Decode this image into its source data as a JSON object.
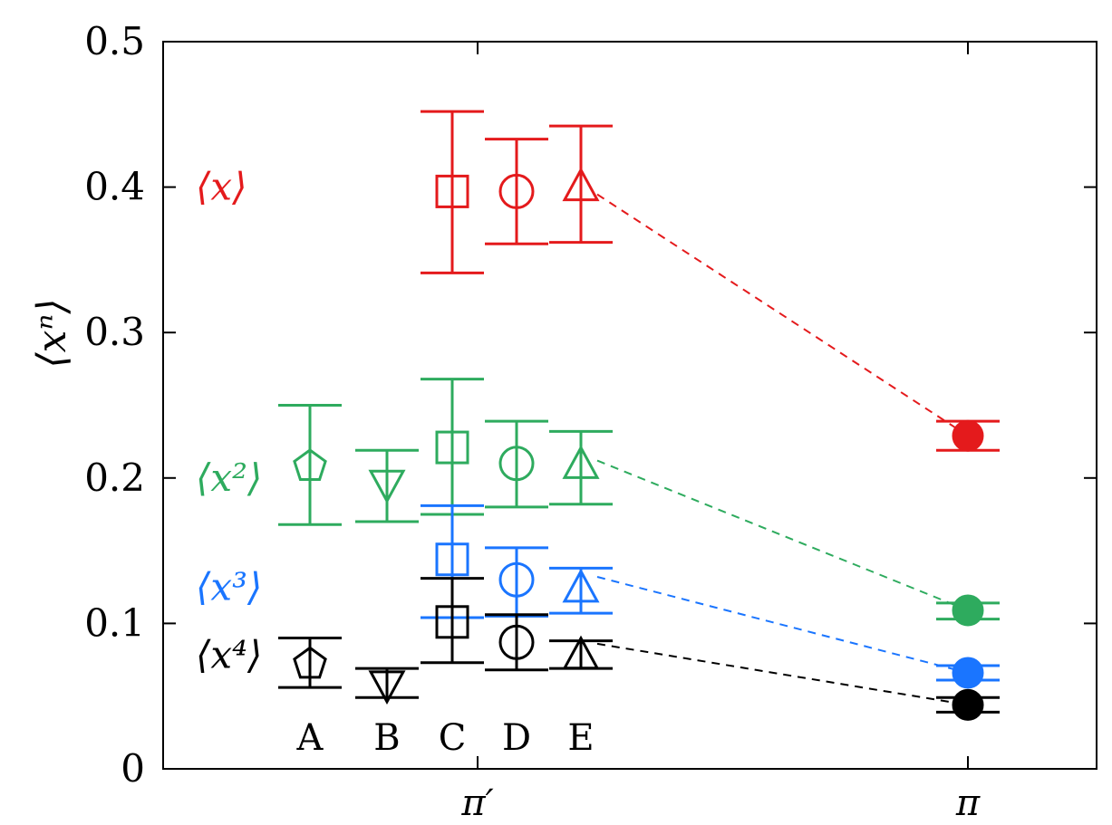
{
  "chart_data": {
    "type": "scatter",
    "title": "",
    "xlabel": "",
    "ylabel": "⟨xⁿ⟩",
    "ylim": [
      0,
      0.5
    ],
    "y_ticks": [
      "0",
      "0.1",
      "0.2",
      "0.3",
      "0.4",
      "0.5"
    ],
    "x_ticks": [
      "π′",
      "π"
    ],
    "grid": false,
    "colors": {
      "x1": "#e41a1c",
      "x2": "#2eab5e",
      "x3": "#1a75ff",
      "x4": "#000000"
    },
    "moment_labels": [
      {
        "key": "x1",
        "text": "⟨x⟩",
        "y": 0.4
      },
      {
        "key": "x2",
        "text": "⟨x²⟩",
        "y": 0.2
      },
      {
        "key": "x3",
        "text": "⟨x³⟩",
        "y": 0.125
      },
      {
        "key": "x4",
        "text": "⟨x⁴⟩",
        "y": 0.078
      }
    ],
    "dataset_labels": [
      "A",
      "B",
      "C",
      "D",
      "E"
    ],
    "series": [
      {
        "moment": "x1",
        "dataset": "C",
        "marker": "square",
        "y": 0.397,
        "err_low": 0.341,
        "err_high": 0.452
      },
      {
        "moment": "x1",
        "dataset": "D",
        "marker": "circle",
        "y": 0.397,
        "err_low": 0.361,
        "err_high": 0.433
      },
      {
        "moment": "x1",
        "dataset": "E",
        "marker": "triangle-up",
        "y": 0.4,
        "err_low": 0.362,
        "err_high": 0.442
      },
      {
        "moment": "x2",
        "dataset": "A",
        "marker": "pentagon",
        "y": 0.208,
        "err_low": 0.168,
        "err_high": 0.25
      },
      {
        "moment": "x2",
        "dataset": "B",
        "marker": "triangle-down",
        "y": 0.196,
        "err_low": 0.17,
        "err_high": 0.219
      },
      {
        "moment": "x2",
        "dataset": "C",
        "marker": "square",
        "y": 0.221,
        "err_low": 0.175,
        "err_high": 0.268
      },
      {
        "moment": "x2",
        "dataset": "D",
        "marker": "circle",
        "y": 0.21,
        "err_low": 0.18,
        "err_high": 0.239
      },
      {
        "moment": "x2",
        "dataset": "E",
        "marker": "triangle-up",
        "y": 0.209,
        "err_low": 0.182,
        "err_high": 0.232
      },
      {
        "moment": "x3",
        "dataset": "C",
        "marker": "square",
        "y": 0.144,
        "err_low": 0.104,
        "err_high": 0.181
      },
      {
        "moment": "x3",
        "dataset": "D",
        "marker": "circle",
        "y": 0.13,
        "err_low": 0.105,
        "err_high": 0.152
      },
      {
        "moment": "x3",
        "dataset": "E",
        "marker": "triangle-up",
        "y": 0.124,
        "err_low": 0.107,
        "err_high": 0.138
      },
      {
        "moment": "x4",
        "dataset": "A",
        "marker": "pentagon",
        "y": 0.072,
        "err_low": 0.056,
        "err_high": 0.09
      },
      {
        "moment": "x4",
        "dataset": "B",
        "marker": "triangle-down",
        "y": 0.058,
        "err_low": 0.049,
        "err_high": 0.069
      },
      {
        "moment": "x4",
        "dataset": "C",
        "marker": "square",
        "y": 0.101,
        "err_low": 0.073,
        "err_high": 0.131
      },
      {
        "moment": "x4",
        "dataset": "D",
        "marker": "circle",
        "y": 0.087,
        "err_low": 0.068,
        "err_high": 0.106
      },
      {
        "moment": "x4",
        "dataset": "E",
        "marker": "triangle-up",
        "y": 0.078,
        "err_low": 0.069,
        "err_high": 0.088
      }
    ],
    "pi_points": [
      {
        "moment": "x1",
        "y": 0.229,
        "err_low": 0.219,
        "err_high": 0.239
      },
      {
        "moment": "x2",
        "y": 0.109,
        "err_low": 0.103,
        "err_high": 0.114
      },
      {
        "moment": "x3",
        "y": 0.066,
        "err_low": 0.061,
        "err_high": 0.071
      },
      {
        "moment": "x4",
        "y": 0.044,
        "err_low": 0.039,
        "err_high": 0.049
      }
    ],
    "dashed_connectors": [
      {
        "moment": "x1",
        "from_dataset": "E",
        "from_y": 0.395,
        "to_y": 0.229
      },
      {
        "moment": "x2",
        "from_dataset": "E",
        "from_y": 0.212,
        "to_y": 0.109
      },
      {
        "moment": "x3",
        "from_dataset": "E",
        "from_y": 0.132,
        "to_y": 0.066
      },
      {
        "moment": "x4",
        "from_dataset": "E",
        "from_y": 0.086,
        "to_y": 0.044
      }
    ]
  }
}
